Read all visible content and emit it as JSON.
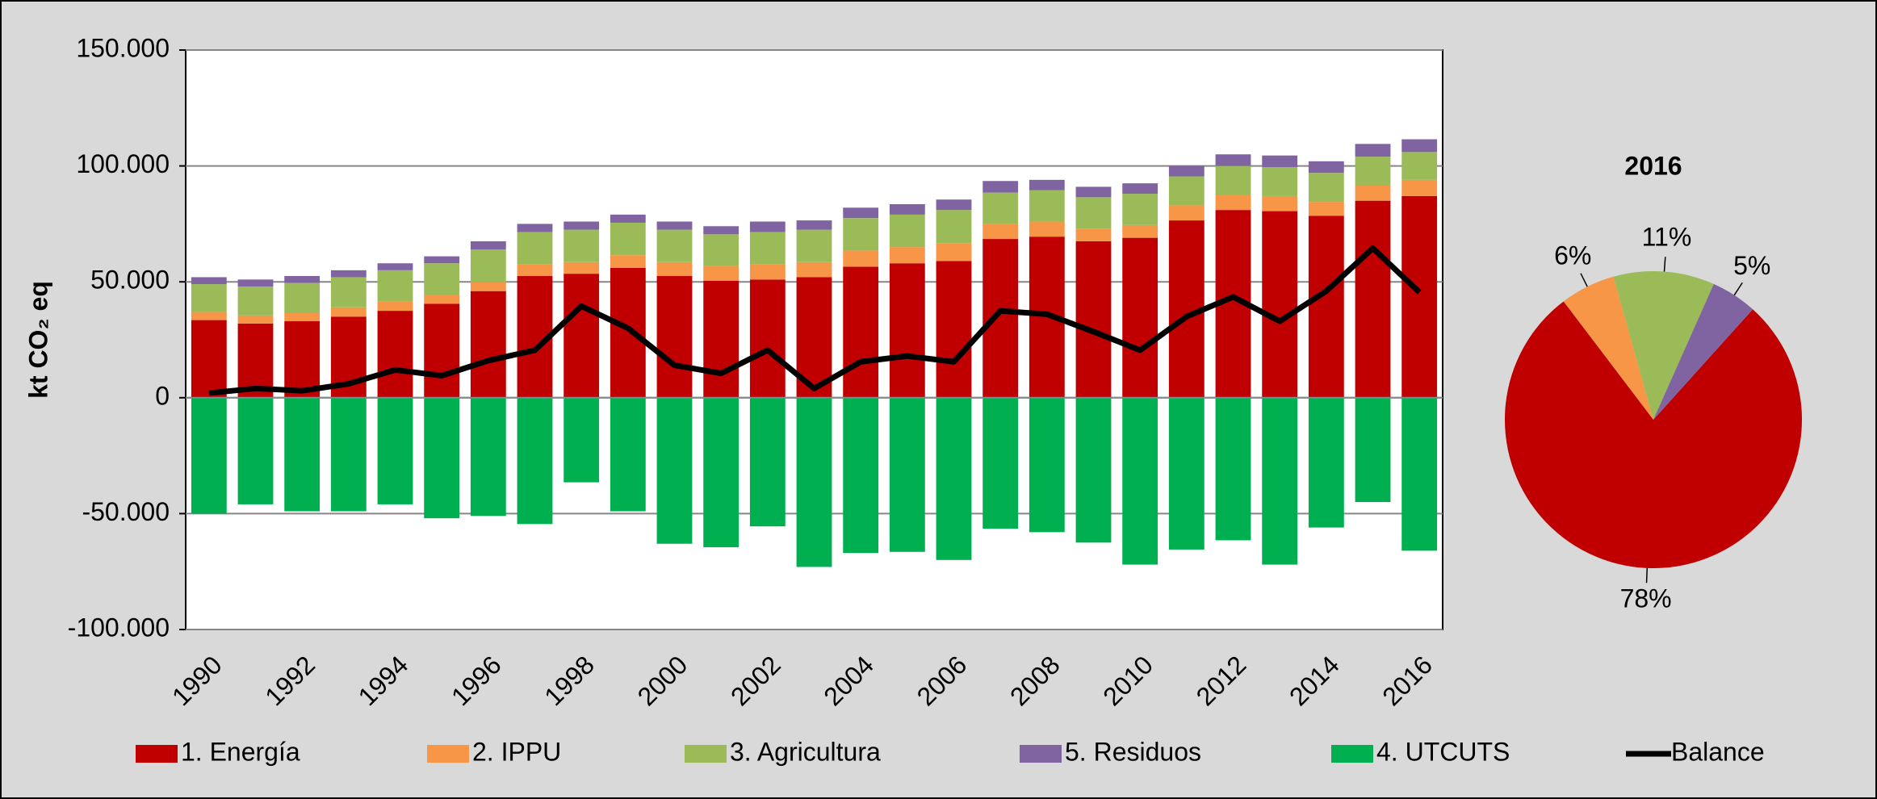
{
  "chart_data": [
    {
      "type": "bar",
      "stacked": true,
      "y_label": "kt CO₂ eq",
      "categories": [
        "1990",
        null,
        "1992",
        null,
        "1994",
        null,
        "1996",
        null,
        "1998",
        null,
        "2000",
        null,
        "2002",
        null,
        "2004",
        null,
        "2006",
        null,
        "2008",
        null,
        "2010",
        null,
        "2012",
        null,
        "2014",
        null,
        "2016"
      ],
      "series": [
        {
          "name": "1. Energía",
          "color": "#c00000",
          "values": [
            33500,
            32000,
            33000,
            35000,
            37500,
            40500,
            46000,
            52500,
            53500,
            56000,
            52500,
            50500,
            51000,
            52000,
            56500,
            58000,
            59000,
            68500,
            69500,
            67500,
            69000,
            76500,
            81000,
            80500,
            78500,
            85000,
            87000
          ]
        },
        {
          "name": "2. IPPU",
          "color": "#f79646",
          "values": [
            3500,
            3500,
            3500,
            4000,
            4000,
            4000,
            4000,
            5000,
            5000,
            5500,
            6000,
            6500,
            6500,
            6500,
            7000,
            7000,
            7500,
            6500,
            6500,
            5500,
            5500,
            6500,
            6500,
            6500,
            6000,
            6500,
            7000
          ]
        },
        {
          "name": "3. Agricultura",
          "color": "#9bbb59",
          "values": [
            12000,
            12500,
            13000,
            13000,
            13500,
            13500,
            14000,
            14000,
            14000,
            14000,
            14000,
            13500,
            14000,
            14000,
            14000,
            14000,
            14500,
            13500,
            13500,
            13500,
            13500,
            12500,
            12500,
            12500,
            12500,
            12500,
            12000
          ]
        },
        {
          "name": "5. Residuos",
          "color": "#8064a2",
          "values": [
            3000,
            3000,
            3000,
            3000,
            3000,
            3000,
            3500,
            3500,
            3500,
            3500,
            3500,
            3500,
            4500,
            4000,
            4500,
            4500,
            4500,
            5000,
            4500,
            4500,
            4500,
            4500,
            5000,
            5000,
            5000,
            5500,
            5500
          ]
        },
        {
          "name": "4. UTCUTS",
          "color": "#00b050",
          "values": [
            -50000,
            -46000,
            -49000,
            -49000,
            -46000,
            -52000,
            -51000,
            -54500,
            -36500,
            -49000,
            -63000,
            -64500,
            -55500,
            -73000,
            -67000,
            -66500,
            -70000,
            -56500,
            -58000,
            -62500,
            -72000,
            -65500,
            -61500,
            -72000,
            -56000,
            -45000,
            -66000
          ]
        },
        {
          "name": "Balance",
          "color": "#000000",
          "type": "line",
          "values": [
            2000,
            4000,
            3000,
            6000,
            12000,
            9500,
            16000,
            20500,
            39500,
            30000,
            14000,
            10500,
            20500,
            4000,
            15500,
            18000,
            15500,
            37500,
            36000,
            28500,
            20500,
            35000,
            43500,
            33000,
            46000,
            64500,
            45500
          ]
        }
      ],
      "ylim": [
        -100000,
        150000
      ],
      "yticks": [
        {
          "value": -100000,
          "label": "-100.000"
        },
        {
          "value": -50000,
          "label": "-50.000"
        },
        0,
        {
          "value": 50000,
          "label": "50.000"
        },
        {
          "value": 100000,
          "label": "100.000"
        },
        {
          "value": 150000,
          "label": "150.000"
        }
      ],
      "grid": true,
      "legend": "bottom"
    },
    {
      "type": "pie",
      "title": "2016",
      "values": [
        78,
        6,
        11,
        5
      ],
      "value_labels": [
        "78%",
        "6%",
        "11%",
        "5%"
      ],
      "colors": [
        "#c00000",
        "#f79646",
        "#9bbb59",
        "#8064a2"
      ]
    }
  ]
}
